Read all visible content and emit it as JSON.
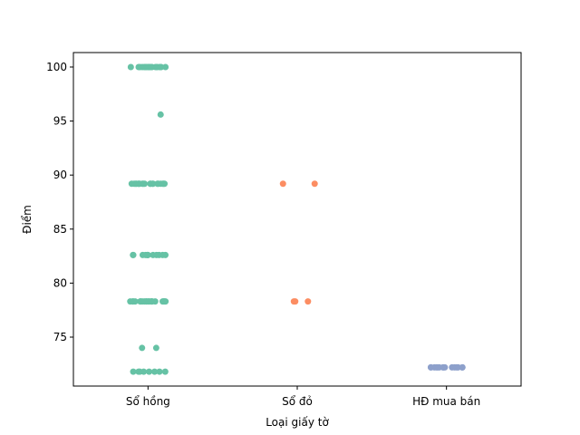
{
  "chart_data": {
    "type": "strip",
    "x_label": "Loại giấy tờ",
    "y_label": "Điểm",
    "categories": [
      "Sổ hồng",
      "Sổ đỏ",
      "HĐ mua bán"
    ],
    "colors": [
      "#66c2a5",
      "#fc8d62",
      "#8da0cb"
    ],
    "values": [
      [
        100,
        100,
        100,
        100,
        100,
        100,
        100,
        100,
        100,
        100,
        100,
        100,
        100,
        100,
        100,
        100,
        100,
        100,
        100,
        100,
        95.6,
        89.2,
        89.2,
        89.2,
        89.2,
        89.2,
        89.2,
        89.2,
        89.2,
        89.2,
        89.2,
        89.2,
        89.2,
        89.2,
        89.2,
        89.2,
        89.2,
        89.2,
        89.2,
        89.2,
        89.2,
        82.6,
        82.6,
        82.6,
        82.6,
        82.6,
        82.6,
        82.6,
        82.6,
        82.6,
        82.6,
        82.6,
        82.6,
        78.3,
        78.3,
        78.3,
        78.3,
        78.3,
        78.3,
        78.3,
        78.3,
        78.3,
        78.3,
        78.3,
        78.3,
        78.3,
        78.3,
        78.3,
        78.3,
        78.3,
        78.3,
        78.3,
        78.3,
        74,
        74,
        71.8,
        71.8,
        71.8,
        71.8,
        71.8,
        71.8,
        71.8,
        71.8
      ],
      [
        89.2,
        89.2,
        78.3,
        78.3,
        78.3
      ],
      [
        72.2,
        72.2,
        72.2,
        72.2,
        72.2,
        72.2,
        72.2,
        72.2,
        72.2,
        72.2,
        72.2,
        72.2,
        72.2,
        72.2,
        72.2
      ]
    ],
    "ylim": [
      70.47,
      101.34
    ],
    "yticks": [
      75,
      80,
      85,
      90,
      95,
      100
    ]
  }
}
